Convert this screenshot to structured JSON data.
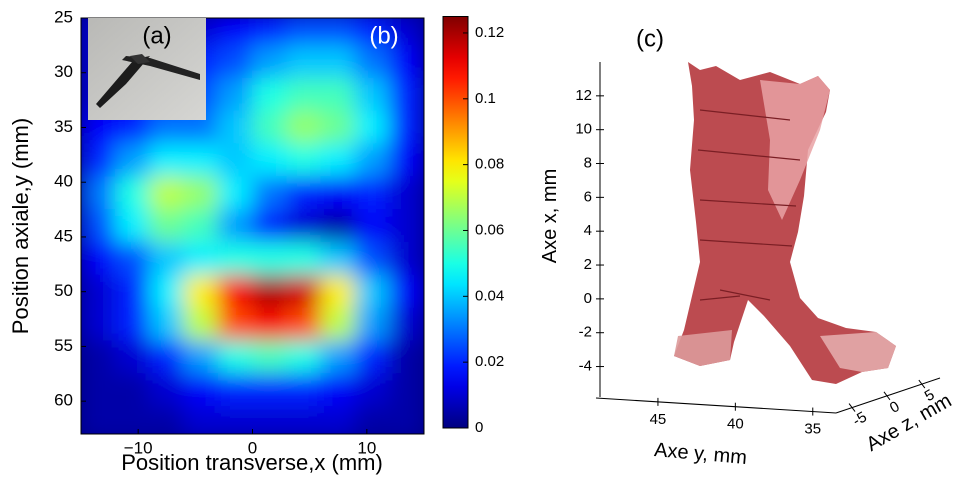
{
  "chart_data": [
    {
      "type": "heatmap",
      "panel_labels": [
        "(a)",
        "(b)"
      ],
      "xlabel": "Position transverse,x (mm)",
      "ylabel": "Position axiale,y  (mm)",
      "x": [
        -13.5,
        -10.5,
        -7.5,
        -4.5,
        -1.5,
        1.5,
        4.5,
        7.5,
        10.5,
        13.5
      ],
      "y": [
        26,
        29,
        32,
        35,
        38,
        41,
        44,
        47,
        50,
        53,
        56,
        59,
        62
      ],
      "values": [
        [
          0.01,
          0.01,
          0.01,
          0.01,
          0.015,
          0.02,
          0.025,
          0.025,
          0.02,
          0.01
        ],
        [
          0.01,
          0.01,
          0.015,
          0.02,
          0.025,
          0.035,
          0.04,
          0.04,
          0.03,
          0.015
        ],
        [
          0.01,
          0.015,
          0.02,
          0.025,
          0.035,
          0.05,
          0.055,
          0.055,
          0.04,
          0.02
        ],
        [
          0.015,
          0.02,
          0.03,
          0.03,
          0.04,
          0.055,
          0.065,
          0.06,
          0.045,
          0.02
        ],
        [
          0.02,
          0.035,
          0.045,
          0.045,
          0.04,
          0.045,
          0.05,
          0.045,
          0.035,
          0.015
        ],
        [
          0.03,
          0.05,
          0.07,
          0.065,
          0.045,
          0.03,
          0.02,
          0.015,
          0.02,
          0.01
        ],
        [
          0.025,
          0.045,
          0.06,
          0.055,
          0.035,
          0.02,
          0.01,
          0.005,
          0.015,
          0.01
        ],
        [
          0.015,
          0.025,
          0.04,
          0.045,
          0.05,
          0.05,
          0.05,
          0.04,
          0.025,
          0.01
        ],
        [
          0.01,
          0.02,
          0.045,
          0.08,
          0.11,
          0.12,
          0.115,
          0.08,
          0.04,
          0.015
        ],
        [
          0.01,
          0.02,
          0.04,
          0.07,
          0.1,
          0.11,
          0.1,
          0.07,
          0.035,
          0.01
        ],
        [
          0.005,
          0.01,
          0.02,
          0.035,
          0.05,
          0.055,
          0.05,
          0.035,
          0.02,
          0.005
        ],
        [
          0.005,
          0.005,
          0.01,
          0.015,
          0.02,
          0.02,
          0.02,
          0.015,
          0.01,
          0.005
        ],
        [
          0.005,
          0.005,
          0.005,
          0.01,
          0.01,
          0.01,
          0.01,
          0.01,
          0.005,
          0.005
        ]
      ],
      "xlim": [
        -15,
        15
      ],
      "ylim": [
        25,
        63
      ],
      "xticks": [
        {
          "value": -10,
          "label": "−10"
        },
        0,
        10
      ],
      "yticks": [
        25,
        30,
        35,
        40,
        45,
        50,
        55,
        60
      ],
      "colormap": "jet",
      "colorbar": {
        "lim": [
          0,
          0.125
        ],
        "ticks": [
          0,
          0.02,
          0.04,
          0.06,
          0.08,
          0.1,
          0.12
        ]
      }
    },
    {
      "type": "surface3d",
      "panel_label": "(c)",
      "color": "#b5373d",
      "xlabel": "Axe y, mm",
      "ylabel": "Axe x, mm",
      "zlabel": "Axe z, mm",
      "xlim": [
        49,
        33.5
      ],
      "xticks": [
        45,
        40,
        35
      ],
      "ylim": [
        -5.8,
        14
      ],
      "yticks": [
        12,
        10,
        8,
        6,
        4,
        2,
        0,
        -2,
        -4
      ],
      "zlim": [
        -7.3,
        7.6
      ],
      "zticks": [
        5,
        0,
        -5
      ]
    }
  ]
}
